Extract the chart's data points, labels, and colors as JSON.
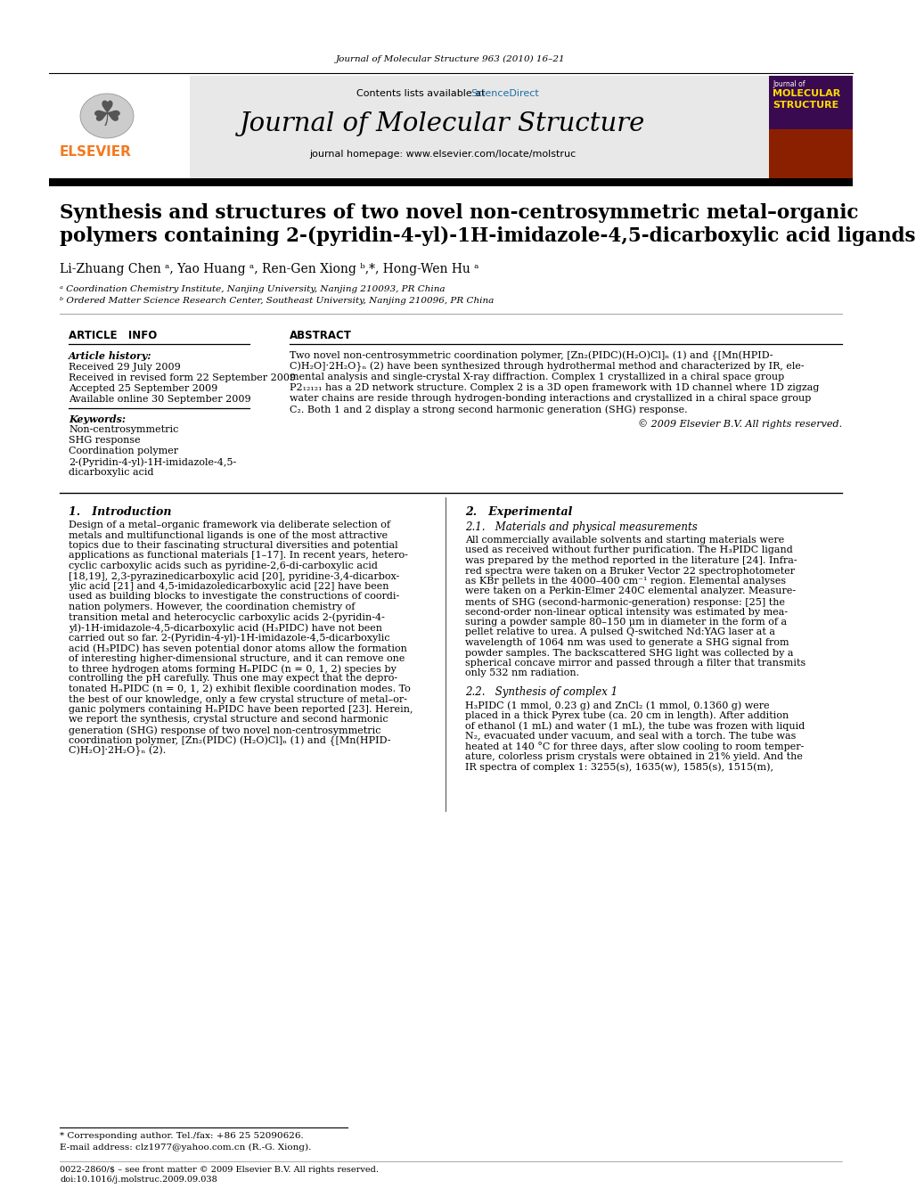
{
  "journal_ref": "Journal of Molecular Structure 963 (2010) 16–21",
  "header_text_contents": "Contents lists available at",
  "sciencedirect_text": "ScienceDirect",
  "journal_name": "Journal of Molecular Structure",
  "journal_homepage": "journal homepage: www.elsevier.com/locate/molstruc",
  "title_line1": "Synthesis and structures of two novel non-centrosymmetric metal–organic",
  "title_line2": "polymers containing 2-(pyridin-4-yl)-1H-imidazole-4,5-dicarboxylic acid ligands",
  "authors": "Li-Zhuang Chen ᵃ, Yao Huang ᵃ, Ren-Gen Xiong ᵇ,*, Hong-Wen Hu ᵃ",
  "affil_a": "ᵃ Coordination Chemistry Institute, Nanjing University, Nanjing 210093, PR China",
  "affil_b": "ᵇ Ordered Matter Science Research Center, Southeast University, Nanjing 210096, PR China",
  "article_info_title": "ARTICLE   INFO",
  "abstract_title": "ABSTRACT",
  "article_history_label": "Article history:",
  "received": "Received 29 July 2009",
  "received_revised": "Received in revised form 22 September 2009",
  "accepted": "Accepted 25 September 2009",
  "available_online": "Available online 30 September 2009",
  "keywords_label": "Keywords:",
  "keyword1": "Non-centrosymmetric",
  "keyword2": "SHG response",
  "keyword3": "Coordination polymer",
  "keyword4": "2-(Pyridin-4-yl)-1H-imidazole-4,5-",
  "keyword5": "dicarboxylic acid",
  "copyright": "© 2009 Elsevier B.V. All rights reserved.",
  "footnote_corresponding": "* Corresponding author. Tel./fax: +86 25 52090626.",
  "footnote_email": "E-mail address: clz1977@yahoo.com.cn (R.-G. Xiong).",
  "issn_line": "0022-2860/$ – see front matter © 2009 Elsevier B.V. All rights reserved.",
  "doi_line": "doi:10.1016/j.molstruc.2009.09.038",
  "bg_color": "#ffffff",
  "header_bg": "#e8e8e8",
  "black_bar_color": "#000000",
  "elsevier_orange": "#f47920",
  "sciencedirect_color": "#1a6ea8",
  "abstract_lines": [
    "Two novel non-centrosymmetric coordination polymer, [Zn₂(PIDC)(H₂O)Cl]ₙ (1) and {[Mn(HPID-",
    "C)H₂O]·2H₂O}ₙ (2) have been synthesized through hydrothermal method and characterized by IR, ele-",
    "mental analysis and single-crystal X-ray diffraction. Complex 1 crystallized in a chiral space group",
    "P2₁₂₁₂₁ has a 2D network structure. Complex 2 is a 3D open framework with 1D channel where 1D zigzag",
    "water chains are reside through hydrogen-bonding interactions and crystallized in a chiral space group",
    "C₂. Both 1 and 2 display a strong second harmonic generation (SHG) response."
  ],
  "intro_heading": "1.   Introduction",
  "intro_lines": [
    "Design of a metal–organic framework via deliberate selection of",
    "metals and multifunctional ligands is one of the most attractive",
    "topics due to their fascinating structural diversities and potential",
    "applications as functional materials [1–17]. In recent years, hetero-",
    "cyclic carboxylic acids such as pyridine-2,6-di-carboxylic acid",
    "[18,19], 2,3-pyrazinedicarboxylic acid [20], pyridine-3,4-dicarbox-",
    "ylic acid [21] and 4,5-imidazoledicarboxylic acid [22] have been",
    "used as building blocks to investigate the constructions of coordi-",
    "nation polymers. However, the coordination chemistry of",
    "transition metal and heterocyclic carboxylic acids 2-(pyridin-4-",
    "yl)-1H-imidazole-4,5-dicarboxylic acid (H₃PIDC) have not been",
    "carried out so far. 2-(Pyridin-4-yl)-1H-imidazole-4,5-dicarboxylic",
    "acid (H₃PIDC) has seven potential donor atoms allow the formation",
    "of interesting higher-dimensional structure, and it can remove one",
    "to three hydrogen atoms forming HₙPIDC (n = 0, 1, 2) species by",
    "controlling the pH carefully. Thus one may expect that the depro-",
    "tonated HₙPIDC (n = 0, 1, 2) exhibit flexible coordination modes. To",
    "the best of our knowledge, only a few crystal structure of metal–or-",
    "ganic polymers containing HₙPIDC have been reported [23]. Herein,",
    "we report the synthesis, crystal structure and second harmonic",
    "generation (SHG) response of two novel non-centrosymmetric",
    "coordination polymer, [Zn₂(PIDC) (H₂O)Cl]ₙ (1) and {[Mn(HPID-",
    "C)H₂O]·2H₂O}ₙ (2)."
  ],
  "experimental_heading": "2.   Experimental",
  "exp_sub1": "2.1.   Materials and physical measurements",
  "exp1_lines": [
    "All commercially available solvents and starting materials were",
    "used as received without further purification. The H₃PIDC ligand",
    "was prepared by the method reported in the literature [24]. Infra-",
    "red spectra were taken on a Bruker Vector 22 spectrophotometer",
    "as KBr pellets in the 4000–400 cm⁻¹ region. Elemental analyses",
    "were taken on a Perkin-Elmer 240C elemental analyzer. Measure-",
    "ments of SHG (second-harmonic-generation) response: [25] the",
    "second-order non-linear optical intensity was estimated by mea-",
    "suring a powder sample 80–150 μm in diameter in the form of a",
    "pellet relative to urea. A pulsed Q-switched Nd:YAG laser at a",
    "wavelength of 1064 nm was used to generate a SHG signal from",
    "powder samples. The backscattered SHG light was collected by a",
    "spherical concave mirror and passed through a filter that transmits",
    "only 532 nm radiation."
  ],
  "exp_sub2": "2.2.   Synthesis of complex 1",
  "exp2_lines": [
    "H₃PIDC (1 mmol, 0.23 g) and ZnCl₂ (1 mmol, 0.1360 g) were",
    "placed in a thick Pyrex tube (ca. 20 cm in length). After addition",
    "of ethanol (1 mL) and water (1 mL), the tube was frozen with liquid",
    "N₂, evacuated under vacuum, and seal with a torch. The tube was",
    "heated at 140 °C for three days, after slow cooling to room temper-",
    "ature, colorless prism crystals were obtained in 21% yield. And the",
    "IR spectra of complex 1: 3255(s), 1635(w), 1585(s), 1515(m),"
  ]
}
